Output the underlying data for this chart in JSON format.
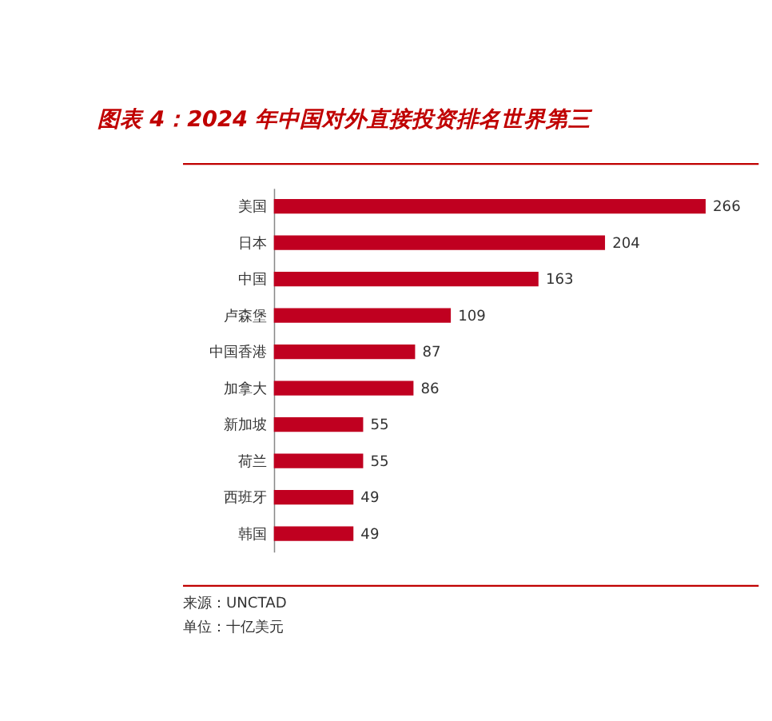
{
  "chart_data": {
    "type": "bar",
    "orientation": "horizontal",
    "title": "图表 4：2024 年中国对外直接投资排名世界第三",
    "categories": [
      "美国",
      "日本",
      "中国",
      "卢森堡",
      "中国香港",
      "加拿大",
      "新加坡",
      "荷兰",
      "西班牙",
      "韩国"
    ],
    "values": [
      266,
      204,
      163,
      109,
      87,
      86,
      55,
      55,
      49,
      49
    ],
    "color": "#c00020",
    "data_labels": true,
    "annotations": [
      "来源：UNCTAD",
      "单位：十亿美元"
    ]
  }
}
